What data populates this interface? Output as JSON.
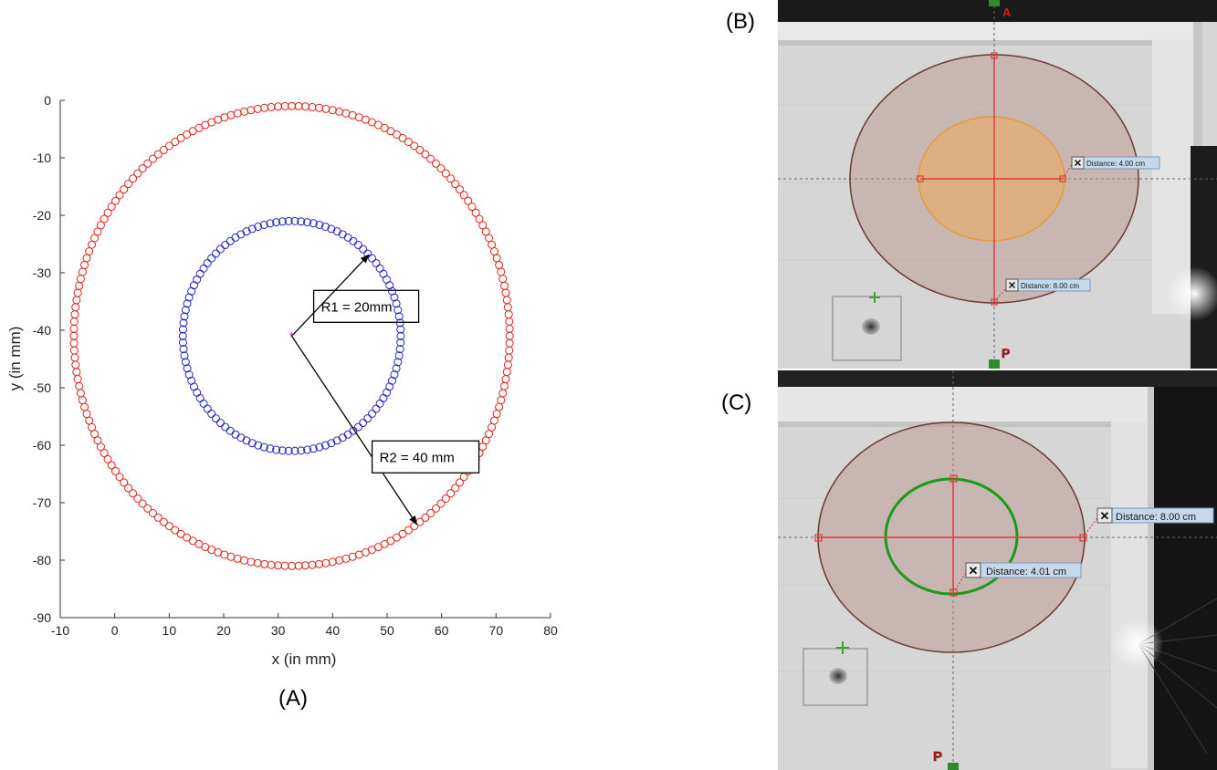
{
  "panels": {
    "a_label": "(A)",
    "b_label": "(B)",
    "c_label": "(C)"
  },
  "chart_data": {
    "type": "scatter",
    "xlabel": "x  (in mm)",
    "ylabel": "y  (in mm)",
    "xlim": [
      -10,
      80
    ],
    "ylim": [
      -90,
      0
    ],
    "x_ticks": [
      -10,
      0,
      10,
      20,
      30,
      40,
      50,
      60,
      70,
      80
    ],
    "y_ticks": [
      0,
      -10,
      -20,
      -30,
      -40,
      -50,
      -60,
      -70,
      -80,
      -90
    ],
    "center": [
      32.5,
      -41
    ],
    "series": [
      {
        "shape": "circle",
        "cx": 32.5,
        "cy": -41,
        "radius": 40,
        "marker": "o",
        "color": "#e0201c"
      },
      {
        "shape": "circle",
        "cx": 32.5,
        "cy": -41,
        "radius": 20,
        "marker": "o",
        "color": "#2424c8"
      }
    ],
    "annotations": {
      "r1": "R1 = 20mm",
      "r2": "R2 = 40 mm"
    }
  },
  "ct_b": {
    "marker_top": "A",
    "marker_bottom": "P",
    "measure_h": "Distance: 4.00 cm",
    "measure_v": "Distance: 8.00 cm",
    "inner_color": "#f4a84a",
    "outer_color": "#b89088"
  },
  "ct_c": {
    "marker_bottom": "P",
    "measure_h": "Distance: 8.00 cm",
    "measure_v": "Distance: 4.01 cm",
    "inner_color": "#1a9a1a",
    "outer_color": "#b89088"
  }
}
